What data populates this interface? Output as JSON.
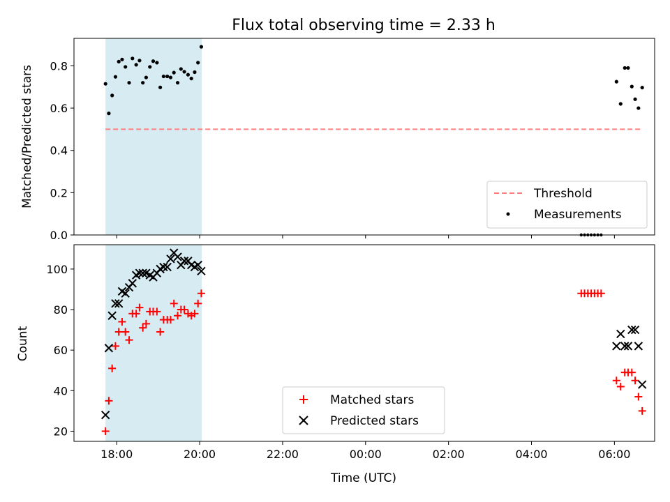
{
  "chart_data": {
    "title": "Flux total observing time = 2.33 h",
    "xlabel": "Time (UTC)",
    "x_tick_labels": [
      "18:00",
      "20:00",
      "22:00",
      "00:00",
      "02:00",
      "04:00",
      "06:00"
    ],
    "x_tick_hours": [
      18,
      20,
      22,
      24,
      26,
      28,
      30
    ],
    "xlim_hours": [
      16.97,
      30.97
    ],
    "x_unit_note": "hours since 00:00 UTC of first night; values above 24 are after midnight",
    "shaded_interval_hours": [
      17.73,
      20.05
    ],
    "shaded_color": "#add8e6",
    "panels": [
      {
        "type": "scatter",
        "ylabel": "Matched/Predicted stars",
        "ylim": [
          0,
          0.93
        ],
        "y_ticks": [
          0.0,
          0.2,
          0.4,
          0.6,
          0.8
        ],
        "y_tick_labels": [
          "0.0",
          "0.2",
          "0.4",
          "0.6",
          "0.8"
        ],
        "legend_position": "lower right",
        "series": [
          {
            "name": "Threshold",
            "style": "dashed-line",
            "color": "#ff7f7f",
            "x": [
              17.73,
              30.65
            ],
            "y": [
              0.5,
              0.5
            ]
          },
          {
            "name": "Measurements",
            "style": "dot",
            "color": "#000000",
            "x": [
              17.73,
              17.81,
              17.89,
              17.97,
              18.05,
              18.13,
              18.21,
              18.3,
              18.38,
              18.47,
              18.55,
              18.63,
              18.71,
              18.8,
              18.88,
              18.97,
              19.05,
              19.13,
              19.22,
              19.3,
              19.38,
              19.47,
              19.55,
              19.63,
              19.72,
              19.8,
              19.88,
              19.96,
              20.04,
              30.05,
              30.15,
              30.25,
              30.33,
              30.42,
              30.5,
              30.58,
              30.67
            ],
            "y": [
              0.715,
              0.575,
              0.66,
              0.748,
              0.82,
              0.83,
              0.795,
              0.72,
              0.835,
              0.805,
              0.825,
              0.72,
              0.745,
              0.795,
              0.822,
              0.815,
              0.698,
              0.75,
              0.75,
              0.745,
              0.768,
              0.72,
              0.785,
              0.772,
              0.758,
              0.74,
              0.77,
              0.815,
              0.89,
              0.725,
              0.62,
              0.79,
              0.79,
              0.702,
              0.642,
              0.6,
              0.697
            ]
          }
        ],
        "extra_markers": {
          "note": "small black markers along zero line",
          "x": [
            29.2,
            29.28,
            29.36,
            29.44,
            29.52,
            29.6,
            29.68
          ],
          "y": [
            0,
            0,
            0,
            0,
            0,
            0,
            0
          ]
        }
      },
      {
        "type": "scatter",
        "ylabel": "Count",
        "ylim": [
          15,
          112
        ],
        "y_ticks": [
          20,
          40,
          60,
          80,
          100
        ],
        "y_tick_labels": [
          "20",
          "40",
          "60",
          "80",
          "100"
        ],
        "legend_position": "lower center",
        "series": [
          {
            "name": "Matched stars",
            "style": "plus",
            "color": "#ff0000",
            "x": [
              17.73,
              17.81,
              17.89,
              17.97,
              18.05,
              18.13,
              18.21,
              18.3,
              18.38,
              18.47,
              18.55,
              18.63,
              18.71,
              18.8,
              18.88,
              18.97,
              19.05,
              19.13,
              19.22,
              19.3,
              19.38,
              19.47,
              19.55,
              19.63,
              19.72,
              19.8,
              19.88,
              19.96,
              20.04,
              29.2,
              29.28,
              29.36,
              29.44,
              29.52,
              29.6,
              29.68,
              30.05,
              30.15,
              30.25,
              30.33,
              30.42,
              30.5,
              30.58,
              30.67
            ],
            "y": [
              20,
              35,
              51,
              62,
              69,
              74,
              69,
              65,
              78,
              78,
              81,
              71,
              73,
              79,
              79,
              79,
              69,
              75,
              75,
              75,
              83,
              77,
              80,
              80,
              78,
              77,
              78,
              83,
              88,
              88,
              88,
              88,
              88,
              88,
              88,
              88,
              45,
              42,
              49,
              49,
              49,
              45,
              37,
              30
            ]
          },
          {
            "name": "Predicted stars",
            "style": "x",
            "color": "#000000",
            "x": [
              17.73,
              17.81,
              17.89,
              17.97,
              18.05,
              18.13,
              18.21,
              18.3,
              18.38,
              18.47,
              18.55,
              18.63,
              18.71,
              18.8,
              18.88,
              18.97,
              19.05,
              19.13,
              19.22,
              19.3,
              19.38,
              19.47,
              19.55,
              19.63,
              19.72,
              19.8,
              19.88,
              19.96,
              20.04,
              30.05,
              30.15,
              30.25,
              30.33,
              30.42,
              30.5,
              30.58,
              30.67
            ],
            "y": [
              28,
              61,
              77,
              83,
              83,
              89,
              88,
              91,
              93,
              97,
              98,
              98,
              98,
              97,
              96,
              98,
              100,
              101,
              101,
              105,
              108,
              106,
              102,
              104,
              104,
              102,
              101,
              102,
              99,
              62,
              68,
              62,
              62,
              70,
              70,
              62,
              43
            ]
          }
        ]
      }
    ]
  }
}
